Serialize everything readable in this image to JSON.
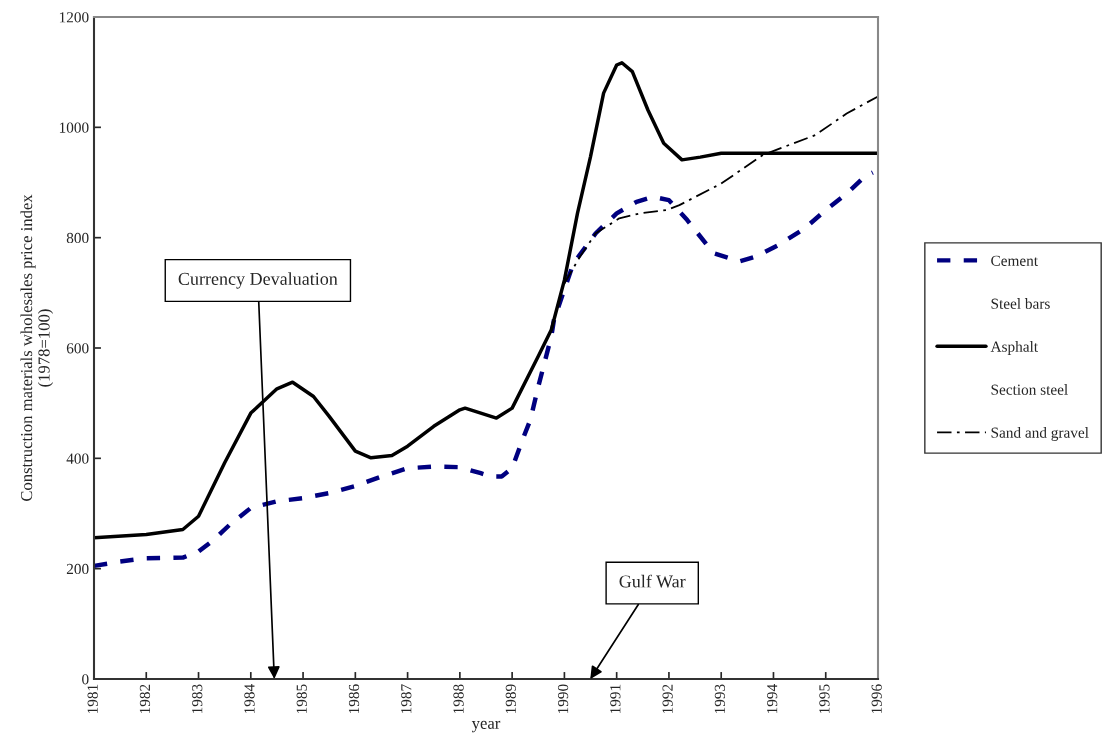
{
  "chart_data": {
    "type": "line",
    "xlabel": "year",
    "ylabel": "Construction materials wholesales price index\n(1978=100)",
    "xlim": [
      1981,
      1996
    ],
    "ylim": [
      0,
      1200
    ],
    "xticks": [
      1981,
      1982,
      1983,
      1984,
      1985,
      1986,
      1987,
      1988,
      1989,
      1990,
      1991,
      1992,
      1993,
      1994,
      1995,
      1996
    ],
    "yticks": [
      0,
      200,
      400,
      600,
      800,
      1000,
      1200
    ],
    "grid": false,
    "legend": "right",
    "series": [
      {
        "name": "Cement",
        "color": "#000080",
        "line_style": "dashed",
        "x": [
          1981,
          1981.5,
          1982,
          1982.7,
          1983,
          1983.3,
          1983.6,
          1984,
          1984.5,
          1985,
          1985.5,
          1986,
          1986.5,
          1987,
          1987.5,
          1988,
          1988.4,
          1988.6,
          1988.8,
          1989,
          1989.2,
          1989.35,
          1989.5,
          1989.75,
          1989.8,
          1990.17,
          1990.6,
          1991,
          1991.38,
          1991.7,
          1992,
          1992.35,
          1992.85,
          1993.35,
          1993.67,
          1994.1,
          1994.6,
          1995,
          1995.4,
          1995.75,
          1995.9
        ],
        "values": [
          205,
          213,
          219,
          220,
          231,
          253,
          280,
          310,
          322,
          328,
          337,
          350,
          367,
          382,
          385,
          384,
          373,
          367,
          367,
          382,
          434,
          470,
          530,
          621,
          651,
          753,
          808,
          844,
          865,
          874,
          868,
          832,
          772,
          757,
          766,
          787,
          817,
          850,
          880,
          911,
          918
        ]
      },
      {
        "name": "Steel bars"
      },
      {
        "name": "Asphalt",
        "color": "#000000",
        "line_style": "solid",
        "x": [
          1981,
          1982,
          1982.7,
          1983,
          1983.5,
          1984,
          1984.5,
          1984.8,
          1985.2,
          1985.5,
          1986,
          1986.3,
          1986.7,
          1987,
          1987.5,
          1988,
          1988.1,
          1988.7,
          1989,
          1989.5,
          1989.75,
          1990,
          1990.25,
          1990.5,
          1990.75,
          1991,
          1991.1,
          1991.3,
          1991.6,
          1991.9,
          1992.25,
          1992.6,
          1993,
          1996
        ],
        "values": [
          256,
          262,
          271,
          295,
          392,
          482,
          526,
          538,
          512,
          476,
          413,
          401,
          405,
          422,
          458,
          488,
          491,
          473,
          491,
          585,
          633,
          723,
          844,
          947,
          1062,
          1113,
          1117,
          1101,
          1031,
          971,
          941,
          946,
          953,
          953
        ]
      },
      {
        "name": "Section steel"
      },
      {
        "name": "Sand and gravel",
        "color": "#000000",
        "line_style": "dashdot",
        "x": [
          1990,
          1990.3,
          1990.6,
          1991.05,
          1991.45,
          1991.95,
          1992.2,
          1993,
          1993.8,
          1994.8,
          1995.4,
          1996
        ],
        "values": [
          717,
          766,
          808,
          835,
          844,
          850,
          859,
          898,
          950,
          986,
          1025,
          1056
        ]
      }
    ],
    "annotations": [
      "Currency Devaluation",
      "Gulf War"
    ]
  }
}
